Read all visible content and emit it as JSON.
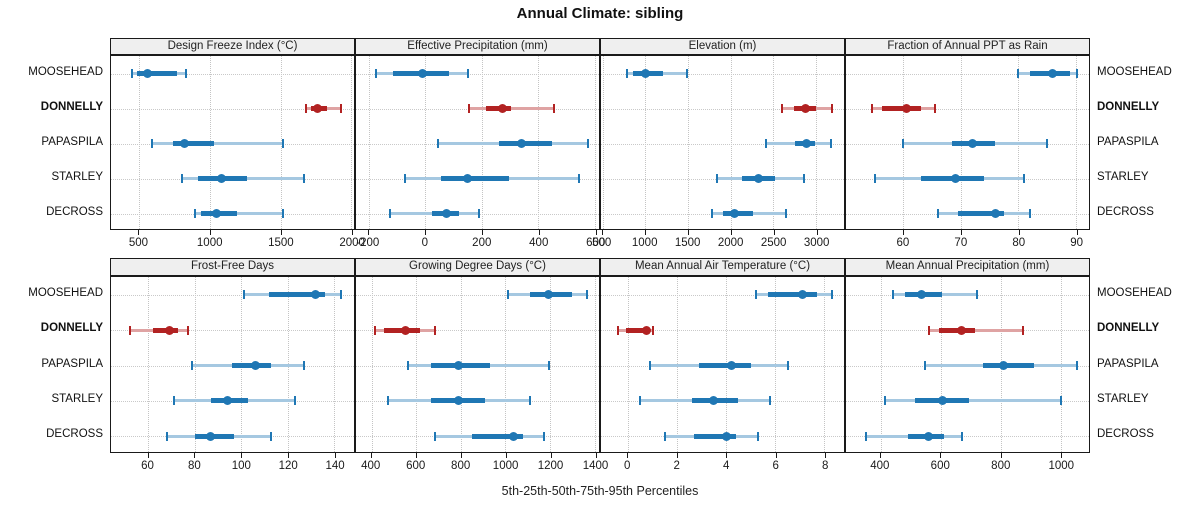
{
  "title": "Annual Climate: sibling",
  "caption": "5th-25th-50th-75th-95th Percentiles",
  "sites": [
    "MOOSEHEAD",
    "DONNELLY",
    "PAPASPILA",
    "STARLEY",
    "DECROSS"
  ],
  "highlight_site": "DONNELLY",
  "colors": {
    "series_main": "#1f77b4",
    "series_light": "#a5c8e1",
    "highlight_main": "#b22222",
    "highlight_light": "#dfa3a3",
    "panel_border": "#1a1a1a",
    "header_bg": "#efefef",
    "grid": "#c6c6c6"
  },
  "chart_data": {
    "type": "scatter",
    "subtype": "percentile interval dotplot (5th-25th-50th-75th-95th)",
    "title": "Annual Climate: sibling",
    "xlabel": "5th-25th-50th-75th-95th Percentiles",
    "grid": "dotted",
    "layout": {
      "rows": 2,
      "cols": 4,
      "site_labels_left": true,
      "site_labels_right": true
    },
    "percentile_order": [
      "p5",
      "p25",
      "p50",
      "p75",
      "p95"
    ],
    "panels": [
      {
        "title": "Design Freeze Index (°C)",
        "row": 0,
        "col": 0,
        "xlim": [
          300,
          2020
        ],
        "ticks": [
          500,
          1000,
          1500,
          2000
        ],
        "series": [
          {
            "site": "MOOSEHEAD",
            "percentiles": [
              450,
              485,
              560,
              770,
              830
            ]
          },
          {
            "site": "DONNELLY",
            "percentiles": [
              1680,
              1715,
              1765,
              1830,
              1930
            ]
          },
          {
            "site": "PAPASPILA",
            "percentiles": [
              590,
              740,
              820,
              1030,
              1520
            ]
          },
          {
            "site": "STARLEY",
            "percentiles": [
              805,
              915,
              1080,
              1260,
              1665
            ]
          },
          {
            "site": "DECROSS",
            "percentiles": [
              895,
              940,
              1045,
              1190,
              1520
            ]
          }
        ]
      },
      {
        "title": "Effective Precipitation (mm)",
        "row": 0,
        "col": 1,
        "xlim": [
          -245,
          615
        ],
        "ticks": [
          -200,
          0,
          200,
          400,
          600
        ],
        "series": [
          {
            "site": "MOOSEHEAD",
            "percentiles": [
              -175,
              -115,
              -10,
              85,
              150
            ]
          },
          {
            "site": "DONNELLY",
            "percentiles": [
              155,
              215,
              275,
              305,
              455
            ]
          },
          {
            "site": "PAPASPILA",
            "percentiles": [
              45,
              260,
              340,
              450,
              575
            ]
          },
          {
            "site": "STARLEY",
            "percentiles": [
              -70,
              55,
              150,
              295,
              545
            ]
          },
          {
            "site": "DECROSS",
            "percentiles": [
              -125,
              25,
              75,
              120,
              190
            ]
          }
        ]
      },
      {
        "title": "Elevation (m)",
        "row": 0,
        "col": 2,
        "xlim": [
          480,
          3330
        ],
        "ticks": [
          500,
          1000,
          1500,
          2000,
          2500,
          3000
        ],
        "series": [
          {
            "site": "MOOSEHEAD",
            "percentiles": [
              780,
              860,
              1000,
              1210,
              1490
            ]
          },
          {
            "site": "DONNELLY",
            "percentiles": [
              2600,
              2740,
              2880,
              3000,
              3190
            ]
          },
          {
            "site": "PAPASPILA",
            "percentiles": [
              2420,
              2760,
              2890,
              2990,
              3180
            ]
          },
          {
            "site": "STARLEY",
            "percentiles": [
              1840,
              2130,
              2330,
              2520,
              2860
            ]
          },
          {
            "site": "DECROSS",
            "percentiles": [
              1780,
              1910,
              2040,
              2260,
              2650
            ]
          }
        ]
      },
      {
        "title": "Fraction of Annual PPT as Rain",
        "row": 0,
        "col": 3,
        "xlim": [
          50,
          92.3
        ],
        "ticks": [
          60,
          70,
          80,
          90
        ],
        "series": [
          {
            "site": "MOOSEHEAD",
            "percentiles": [
              80,
              82,
              86,
              89,
              90.2
            ]
          },
          {
            "site": "DONNELLY",
            "percentiles": [
              54.5,
              56.2,
              60.5,
              63,
              65.5
            ]
          },
          {
            "site": "PAPASPILA",
            "percentiles": [
              60,
              68.5,
              72,
              76,
              85
            ]
          },
          {
            "site": "STARLEY",
            "percentiles": [
              55,
              63,
              69,
              74,
              81
            ]
          },
          {
            "site": "DECROSS",
            "percentiles": [
              66,
              69.5,
              76,
              77.5,
              82
            ]
          }
        ]
      },
      {
        "title": "Frost-Free Days",
        "row": 1,
        "col": 0,
        "xlim": [
          44,
          148.5
        ],
        "ticks": [
          60,
          80,
          100,
          120,
          140
        ],
        "series": [
          {
            "site": "MOOSEHEAD",
            "percentiles": [
              101,
              112,
              132,
              136,
              143
            ]
          },
          {
            "site": "DONNELLY",
            "percentiles": [
              52,
              62,
              69,
              73,
              77
            ]
          },
          {
            "site": "PAPASPILA",
            "percentiles": [
              79,
              96,
              106,
              113,
              127
            ]
          },
          {
            "site": "STARLEY",
            "percentiles": [
              71,
              87,
              94,
              103,
              123
            ]
          },
          {
            "site": "DECROSS",
            "percentiles": [
              68,
              80,
              87,
              97,
              113
            ]
          }
        ]
      },
      {
        "title": "Growing Degree Days (°C)",
        "row": 1,
        "col": 1,
        "xlim": [
          330,
          1420
        ],
        "ticks": [
          400,
          600,
          800,
          1000,
          1200,
          1400
        ],
        "series": [
          {
            "site": "MOOSEHEAD",
            "percentiles": [
              1010,
              1110,
              1195,
              1300,
              1365
            ]
          },
          {
            "site": "DONNELLY",
            "percentiles": [
              415,
              455,
              550,
              615,
              685
            ]
          },
          {
            "site": "PAPASPILA",
            "percentiles": [
              565,
              665,
              790,
              930,
              1195
            ]
          },
          {
            "site": "STARLEY",
            "percentiles": [
              475,
              665,
              790,
              910,
              1110
            ]
          },
          {
            "site": "DECROSS",
            "percentiles": [
              685,
              850,
              1035,
              1080,
              1175
            ]
          }
        ]
      },
      {
        "title": "Mean Annual Air Temperature (°C)",
        "row": 1,
        "col": 2,
        "xlim": [
          -1.1,
          8.8
        ],
        "ticks": [
          0,
          2,
          4,
          6,
          8
        ],
        "series": [
          {
            "site": "MOOSEHEAD",
            "percentiles": [
              5.2,
              5.7,
              7.1,
              7.7,
              8.3
            ]
          },
          {
            "site": "DONNELLY",
            "percentiles": [
              -0.4,
              -0.1,
              0.75,
              0.9,
              1.0
            ]
          },
          {
            "site": "PAPASPILA",
            "percentiles": [
              0.9,
              2.9,
              4.2,
              5.0,
              6.5
            ]
          },
          {
            "site": "STARLEY",
            "percentiles": [
              0.5,
              2.6,
              3.5,
              4.5,
              5.8
            ]
          },
          {
            "site": "DECROSS",
            "percentiles": [
              1.5,
              2.7,
              4.0,
              4.4,
              5.3
            ]
          }
        ]
      },
      {
        "title": "Mean Annual Precipitation (mm)",
        "row": 1,
        "col": 3,
        "xlim": [
          285,
          1095
        ],
        "ticks": [
          400,
          600,
          800,
          1000
        ],
        "series": [
          {
            "site": "MOOSEHEAD",
            "percentiles": [
              440,
              480,
              535,
              605,
              720
            ]
          },
          {
            "site": "DONNELLY",
            "percentiles": [
              560,
              595,
              670,
              715,
              875
            ]
          },
          {
            "site": "PAPASPILA",
            "percentiles": [
              550,
              740,
              810,
              910,
              1055
            ]
          },
          {
            "site": "STARLEY",
            "percentiles": [
              415,
              515,
              605,
              695,
              1000
            ]
          },
          {
            "site": "DECROSS",
            "percentiles": [
              350,
              490,
              560,
              610,
              670
            ]
          }
        ]
      }
    ]
  }
}
